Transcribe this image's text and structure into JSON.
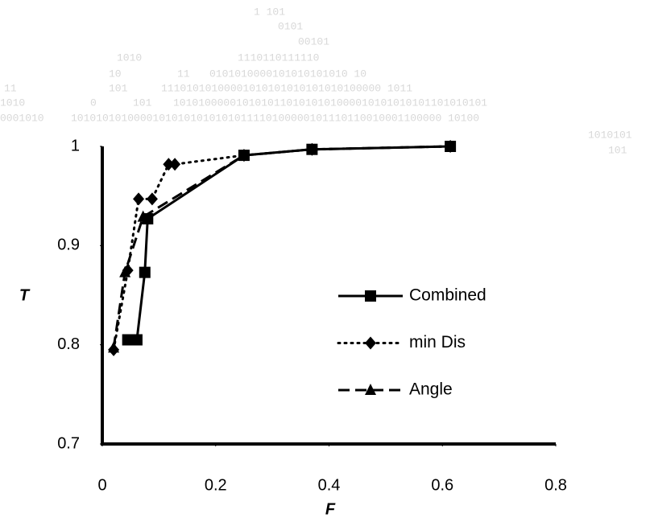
{
  "chart_data": {
    "type": "line",
    "x_label": "F",
    "y_label": "T",
    "xlim": [
      0,
      0.8
    ],
    "xticks": [
      0,
      0.2,
      0.4,
      0.6,
      0.8
    ],
    "ylim": [
      0.7,
      1
    ],
    "yticks": [
      0.7,
      0.8,
      0.9,
      1
    ],
    "grid": false,
    "legend": "right",
    "series": [
      {
        "name": "Combined",
        "color": "#000000",
        "dash": "solid",
        "marker": "square",
        "x": [
          0.045,
          0.061,
          0.075,
          0.08,
          0.25,
          0.37,
          0.614
        ],
        "values": [
          0.805,
          0.805,
          0.873,
          0.927,
          0.991,
          0.997,
          1.0
        ]
      },
      {
        "name": "min Dis",
        "color": "#000000",
        "dash": "dotted",
        "marker": "diamond",
        "x": [
          0.02,
          0.045,
          0.064,
          0.088,
          0.117,
          0.128,
          0.25,
          0.37,
          0.614
        ],
        "values": [
          0.795,
          0.875,
          0.947,
          0.947,
          0.982,
          0.982,
          0.991,
          0.997,
          1.0
        ]
      },
      {
        "name": "Angle",
        "color": "#000000",
        "dash": "dashed",
        "marker": "triangle",
        "x": [
          0.02,
          0.04,
          0.072,
          0.25,
          0.37,
          0.614
        ],
        "values": [
          0.797,
          0.873,
          0.929,
          0.991,
          0.997,
          1.0
        ]
      }
    ],
    "watermark": [
      "1  101",
      "0101",
      "00101",
      "1010",
      "1110110111110",
      "10",
      "11",
      "0101010000101010101010   10",
      "11",
      "101",
      "11101010100001010101010101010100000 1011",
      "1010",
      "0",
      "101",
      "10101000001010101101010101000010101010101101010101",
      "0001010",
      "10101010100001010101010101011110100000101110110010001100000 10100",
      "1010101",
      "101"
    ]
  }
}
